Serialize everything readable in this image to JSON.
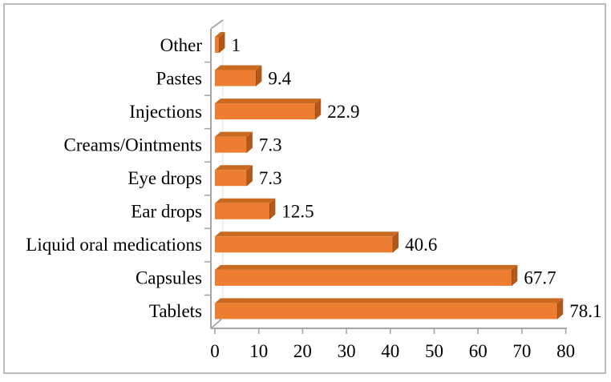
{
  "figure": {
    "background": "#FFFFFF",
    "border_color": "#9E9E9E"
  },
  "chart_data": {
    "type": "bar",
    "orientation": "horizontal",
    "style": "3d-cylinder-free 3d box bars, single series, no legend, no title",
    "title": "",
    "xlabel": "",
    "ylabel": "",
    "categories": [
      "Other",
      "Pastes",
      "Injections",
      "Creams/Ointments",
      "Eye drops",
      "Ear drops",
      "Liquid oral medications",
      "Capsules",
      "Tablets"
    ],
    "values": [
      1,
      9.4,
      22.9,
      7.3,
      7.3,
      12.5,
      40.6,
      67.7,
      78.1
    ],
    "data_labels": [
      "1",
      "9.4",
      "22.9",
      "7.3",
      "7.3",
      "12.5",
      "40.6",
      "67.7",
      "78.1"
    ],
    "xlim": [
      0,
      80
    ],
    "x_ticks": [
      "0",
      "10",
      "20",
      "30",
      "40",
      "50",
      "60",
      "70",
      "80"
    ],
    "legend_position": "none",
    "grid": "single faint back-wall vertical line at value 0",
    "colors": {
      "bar_front": "#ED7D31",
      "bar_top": "#C96A20",
      "bar_side": "#B3581B",
      "bar_edge": "#9C4A12",
      "axis_line": "#A6A6A6",
      "back_gridline": "#E4E4E4",
      "text": "#000000"
    }
  }
}
